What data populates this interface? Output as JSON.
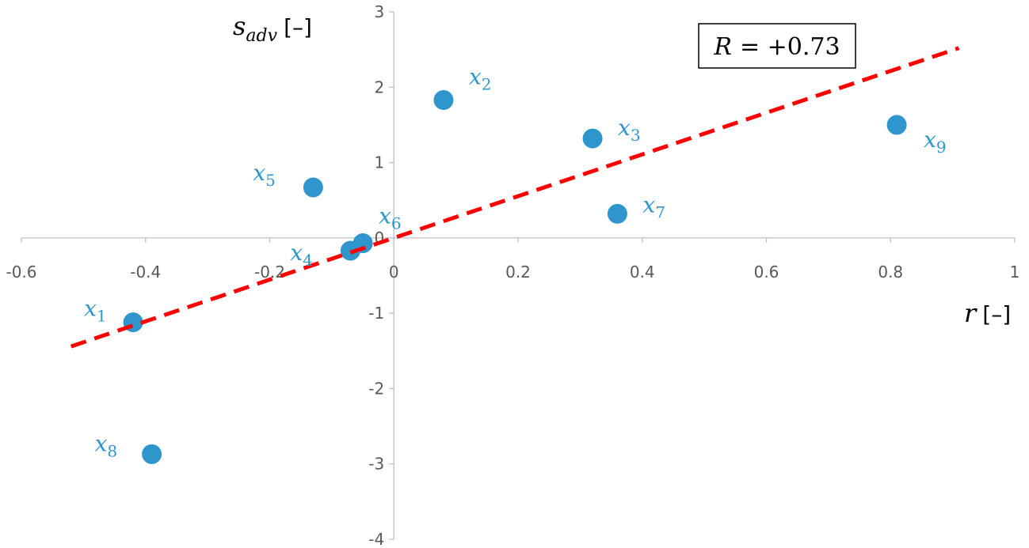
{
  "chart_data": {
    "type": "scatter",
    "xlabel": {
      "symbol": "r",
      "unit": "[–]"
    },
    "ylabel": {
      "symbol": "s",
      "subscript": "adv",
      "unit": "[–]"
    },
    "xlim": [
      -0.6,
      1.0
    ],
    "ylim": [
      -4,
      3
    ],
    "x_ticks": [
      "-0.6",
      "-0.4",
      "-0.2",
      "0",
      "0.2",
      "0.4",
      "0.6",
      "0.8",
      "1"
    ],
    "y_ticks": [
      "-4",
      "-3",
      "-2",
      "-1",
      "0",
      "1",
      "2",
      "3"
    ],
    "grid": false,
    "annotation": {
      "prefix": "R",
      "value": "= +0.73"
    },
    "colors": {
      "points": "#2e96cd",
      "trendline": "#ff0000"
    },
    "trendline": {
      "style": "dashed",
      "x": [
        -0.52,
        0.91
      ],
      "y": [
        -1.44,
        2.52
      ]
    },
    "points": [
      {
        "name": "x",
        "sub": "1",
        "x": -0.42,
        "y": -1.12
      },
      {
        "name": "x",
        "sub": "2",
        "x": 0.08,
        "y": 1.83
      },
      {
        "name": "x",
        "sub": "3",
        "x": 0.32,
        "y": 1.32
      },
      {
        "name": "x",
        "sub": "4",
        "x": -0.07,
        "y": -0.17
      },
      {
        "name": "x",
        "sub": "5",
        "x": -0.13,
        "y": 0.67
      },
      {
        "name": "x",
        "sub": "6",
        "x": -0.05,
        "y": -0.07
      },
      {
        "name": "x",
        "sub": "7",
        "x": 0.36,
        "y": 0.32
      },
      {
        "name": "x",
        "sub": "8",
        "x": -0.39,
        "y": -2.87
      },
      {
        "name": "x",
        "sub": "9",
        "x": 0.81,
        "y": 1.5
      }
    ]
  }
}
